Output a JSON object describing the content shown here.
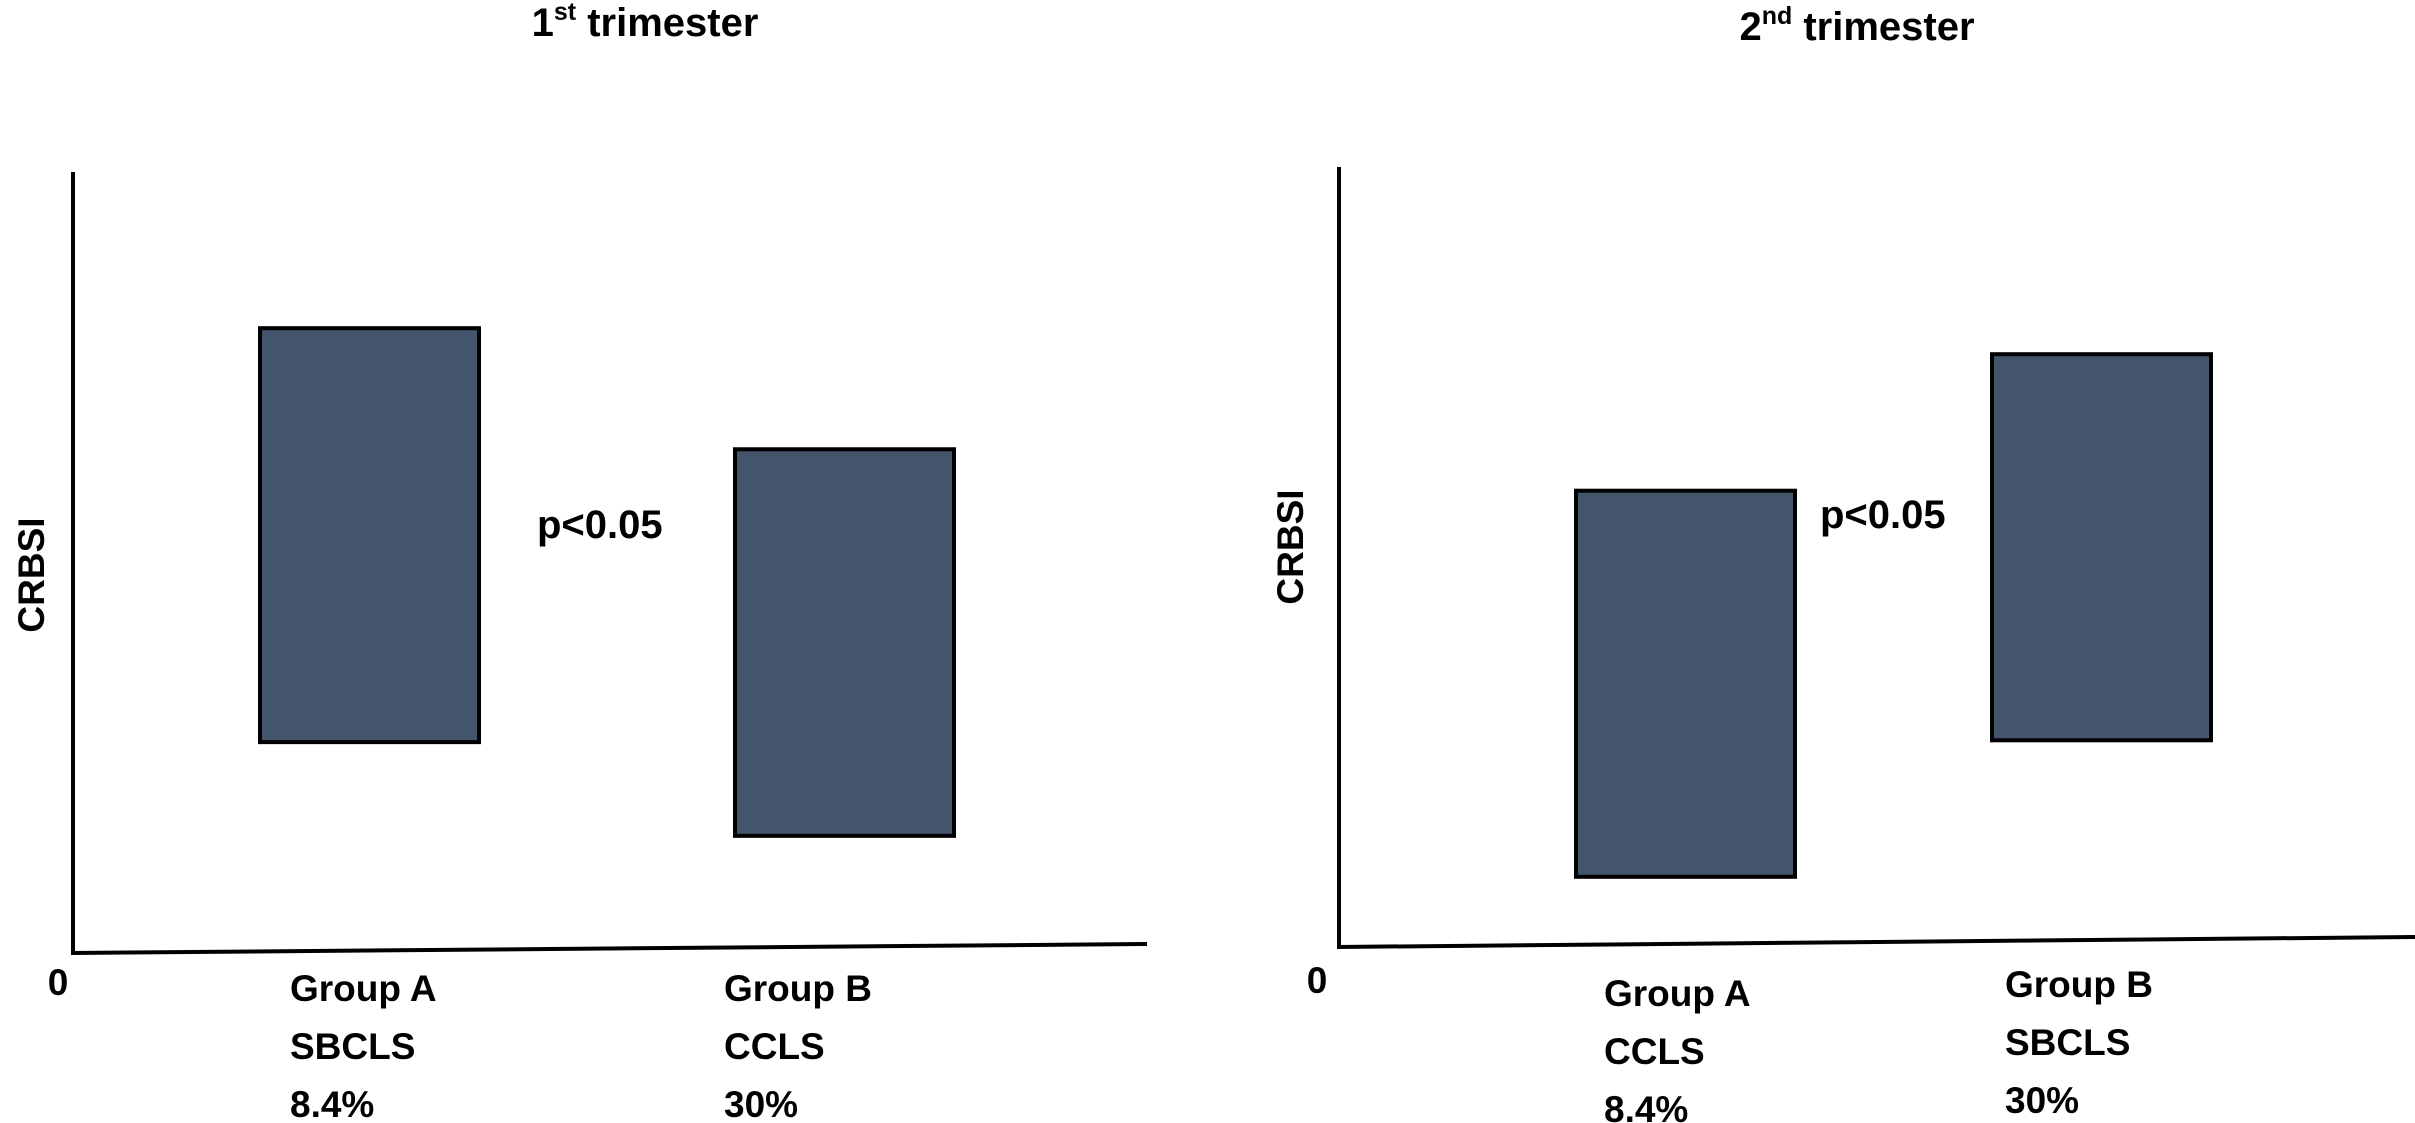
{
  "chart_data": [
    {
      "type": "bar",
      "title": {
        "number": "1",
        "suffix": "st",
        "text": " trimester"
      },
      "ylabel": "CRBSI",
      "origin_label": "0",
      "annotation": "p<0.05",
      "bar_color": "#44546A",
      "categories": [
        {
          "group": "Group A",
          "method": "SBCLS",
          "rate": "8.4%"
        },
        {
          "group": "Group B",
          "method": "CCLS",
          "rate": "30%"
        }
      ],
      "ranges": [
        {
          "low": 0.27,
          "high": 0.8
        },
        {
          "low": 0.15,
          "high": 0.645
        }
      ],
      "ylim": [
        0,
        1
      ]
    },
    {
      "type": "bar",
      "title": {
        "number": "2",
        "suffix": "nd",
        "text": " trimester"
      },
      "ylabel": "CRBSI",
      "origin_label": "0",
      "annotation": "p<0.05",
      "bar_color": "#44546A",
      "categories": [
        {
          "group": "Group A",
          "method": "CCLS",
          "rate": "8.4%"
        },
        {
          "group": "Group B",
          "method": "SBCLS",
          "rate": "30%"
        }
      ],
      "ranges": [
        {
          "low": 0.09,
          "high": 0.585
        },
        {
          "low": 0.265,
          "high": 0.76
        }
      ],
      "ylim": [
        0,
        1
      ]
    }
  ]
}
